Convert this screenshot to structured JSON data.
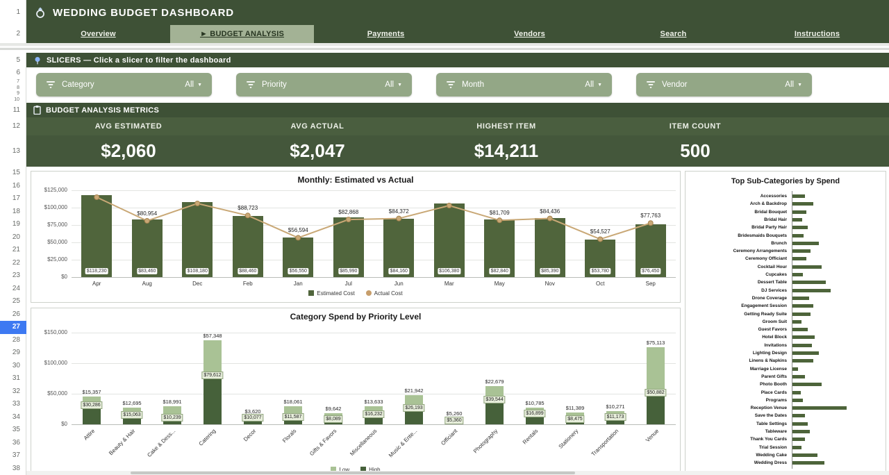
{
  "header": {
    "title": "WEDDING BUDGET DASHBOARD"
  },
  "tabs": [
    {
      "label": "Overview",
      "active": false
    },
    {
      "label": "BUDGET ANALYSIS",
      "active": true,
      "marker": "►"
    },
    {
      "label": "Payments",
      "active": false
    },
    {
      "label": "Vendors",
      "active": false
    },
    {
      "label": "Search",
      "active": false
    },
    {
      "label": "Instructions",
      "active": false
    }
  ],
  "slicers": {
    "header": "SLICERS — Click a slicer to filter the dashboard",
    "caret": "▼",
    "items": [
      {
        "name": "Category",
        "value": "All"
      },
      {
        "name": "Priority",
        "value": "All"
      },
      {
        "name": "Month",
        "value": "All"
      },
      {
        "name": "Vendor",
        "value": "All"
      }
    ]
  },
  "metrics": {
    "header": "BUDGET ANALYSIS METRICS",
    "items": [
      {
        "label": "AVG ESTIMATED",
        "value": "$2,060"
      },
      {
        "label": "AVG ACTUAL",
        "value": "$2,047"
      },
      {
        "label": "HIGHEST ITEM",
        "value": "$14,211"
      },
      {
        "label": "ITEM COUNT",
        "value": "500"
      }
    ]
  },
  "rows": {
    "numbers": [
      "1",
      "2",
      "5",
      "6",
      "7",
      "8",
      "9",
      "10",
      "11",
      "12",
      "13",
      "15",
      "16",
      "17",
      "18",
      "19",
      "20",
      "21",
      "22",
      "23",
      "24",
      "25",
      "26",
      "27",
      "28",
      "29",
      "30",
      "31",
      "32",
      "33",
      "34",
      "35",
      "36",
      "37",
      "38"
    ],
    "highlighted": "27"
  },
  "colors": {
    "header_green": "#3e5136",
    "sage": "#93a786",
    "bar_green": "#50653c",
    "stack_dark": "#46613a",
    "stack_light": "#a9c295",
    "line_tan": "#c9a876",
    "row_highlight": "#3d79f2"
  },
  "chart_data": [
    {
      "type": "bar-line-combo",
      "title": "Monthly: Estimated vs Actual",
      "categories": [
        "Apr",
        "Aug",
        "Dec",
        "Feb",
        "Jan",
        "Jul",
        "Jun",
        "Mar",
        "May",
        "Nov",
        "Oct",
        "Sep"
      ],
      "series": [
        {
          "name": "Estimated Cost",
          "kind": "bar",
          "color": "#50653c",
          "values": [
            118230,
            83460,
            108180,
            88460,
            56550,
            85990,
            84160,
            106380,
            82840,
            85390,
            53780,
            76450
          ]
        },
        {
          "name": "Actual Cost",
          "kind": "line",
          "color": "#c9a876",
          "values": [
            115000,
            80954,
            106000,
            88723,
            56594,
            82868,
            84372,
            103000,
            81709,
            84436,
            54527,
            77763
          ],
          "labels": [
            null,
            "$80,954",
            null,
            "$88,723",
            "$56,594",
            "$82,868",
            "$84,372",
            null,
            "$81,709",
            "$84,436",
            "$54,527",
            "$77,763"
          ]
        }
      ],
      "bar_labels": [
        "$118,230",
        "$83,460",
        "$108,180",
        "$88,460",
        "$56,550",
        "$85,990",
        "$84,160",
        "$106,380",
        "$82,840",
        "$85,390",
        "$53,780",
        "$76,450"
      ],
      "ylim": [
        0,
        125000
      ],
      "yticks": [
        "$0",
        "$25,000",
        "$50,000",
        "$75,000",
        "$100,000",
        "$125,000"
      ],
      "legend": [
        {
          "label": "Estimated Cost",
          "color": "#50653c",
          "shape": "square"
        },
        {
          "label": "Actual Cost",
          "color": "#c79e6b",
          "shape": "circle"
        }
      ]
    },
    {
      "type": "stacked-bar",
      "title": "Category Spend by Priority Level",
      "categories": [
        "Attire",
        "Beauty & Hair",
        "Cake & Dess...",
        "Catering",
        "Decor",
        "Florals",
        "Gifts & Favors",
        "Miscellaneous",
        "Music & Ente...",
        "Officiant",
        "Photography",
        "Rentals",
        "Stationery",
        "Transportation",
        "Venue"
      ],
      "series": [
        {
          "name": "High",
          "stack": "bottom",
          "color": "#46613a",
          "values": [
            30286,
            15063,
            10239,
            79612,
            10077,
            11587,
            8089,
            16232,
            26193,
            5360,
            39544,
            16899,
            8475,
            11173,
            50882
          ],
          "labels": [
            "$30,286",
            "$15,063",
            "$10,239",
            "$79,612",
            "$10,077",
            "$11,587",
            "$8,089",
            "$16,232",
            "$26,193",
            "$5,360",
            "$39,544",
            "$16,899",
            "$8,475",
            "$11,173",
            "$50,882"
          ]
        },
        {
          "name": "Low",
          "stack": "top",
          "color": "#a9c295",
          "values": [
            15357,
            12695,
            18991,
            57348,
            3620,
            18061,
            9642,
            13633,
            21942,
            5260,
            22679,
            10785,
            11389,
            10271,
            75113
          ],
          "labels": [
            "$15,357",
            "$12,695",
            "$18,991",
            "$57,348",
            "$3,620",
            "$18,061",
            "$9,642",
            "$13,633",
            "$21,942",
            "$5,260",
            "$22,679",
            "$10,785",
            "$11,389",
            "$10,271",
            "$75,113"
          ]
        }
      ],
      "ylim": [
        0,
        150000
      ],
      "yticks": [
        "$0",
        "$50,000",
        "$100,000",
        "$150,000"
      ],
      "legend": [
        {
          "label": "Low",
          "color": "#a9c295",
          "shape": "square"
        },
        {
          "label": "High",
          "color": "#46613a",
          "shape": "square"
        }
      ]
    },
    {
      "type": "bar-horizontal",
      "title": "Top Sub-Categories by Spend",
      "x_axis_visible": false,
      "categories": [
        "Accessories",
        "Arch & Backdrop",
        "Bridal Bouquet",
        "Bridal Hair",
        "Bridal Party Hair",
        "Bridesmaids Bouquets",
        "Brunch",
        "Ceremony Arrangements",
        "Ceremony Officiant",
        "Cocktail Hour",
        "Cupcakes",
        "Dessert Table",
        "DJ Services",
        "Drone Coverage",
        "Engagement Session",
        "Getting Ready Suite",
        "Groom Suit",
        "Guest Favors",
        "Hotel Block",
        "Invitations",
        "Lighting Design",
        "Linens & Napkins",
        "Marriage License",
        "Parent Gifts",
        "Photo Booth",
        "Place Cards",
        "Programs",
        "Reception Venue",
        "Save the Dates",
        "Table Settings",
        "Tableware",
        "Thank You Cards",
        "Trial Session",
        "Wedding Cake",
        "Wedding Dress"
      ],
      "values_relative": [
        23,
        38,
        26,
        18,
        28,
        21,
        49,
        33,
        26,
        54,
        19,
        62,
        71,
        31,
        38,
        33,
        17,
        28,
        41,
        36,
        49,
        38,
        10,
        23,
        54,
        15,
        19,
        100,
        23,
        28,
        32,
        23,
        17,
        46,
        59
      ]
    }
  ]
}
